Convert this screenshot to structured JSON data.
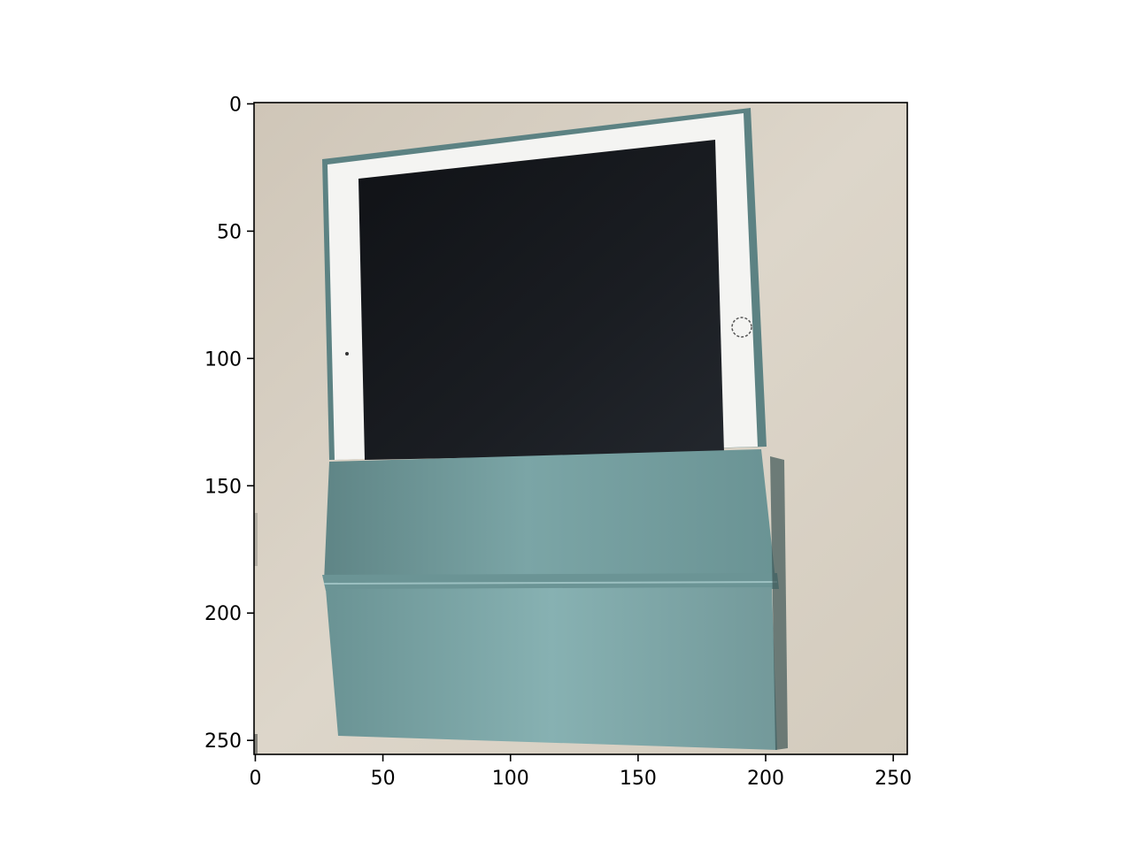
{
  "figure": {
    "image_description_name": "tablet-photo",
    "x_axis": {
      "ticks": [
        {
          "value": 0,
          "label": "0"
        },
        {
          "value": 50,
          "label": "50"
        },
        {
          "value": 100,
          "label": "100"
        },
        {
          "value": 150,
          "label": "150"
        },
        {
          "value": 200,
          "label": "200"
        },
        {
          "value": 250,
          "label": "250"
        }
      ],
      "range": [
        -0.5,
        255.5
      ]
    },
    "y_axis": {
      "ticks": [
        {
          "value": 0,
          "label": "0"
        },
        {
          "value": 50,
          "label": "50"
        },
        {
          "value": 100,
          "label": "100"
        },
        {
          "value": 150,
          "label": "150"
        },
        {
          "value": 200,
          "label": "200"
        },
        {
          "value": 250,
          "label": "250"
        }
      ],
      "range": [
        -0.5,
        255.5
      ]
    },
    "colors": {
      "background_surface": "#d9d2c6",
      "case_teal": "#6f9a9b",
      "case_teal_light": "#86b0b1",
      "case_teal_dark": "#4f7778",
      "bezel_white": "#f4f4f2",
      "screen_black": "#14161a",
      "axis_black": "#000000"
    }
  }
}
